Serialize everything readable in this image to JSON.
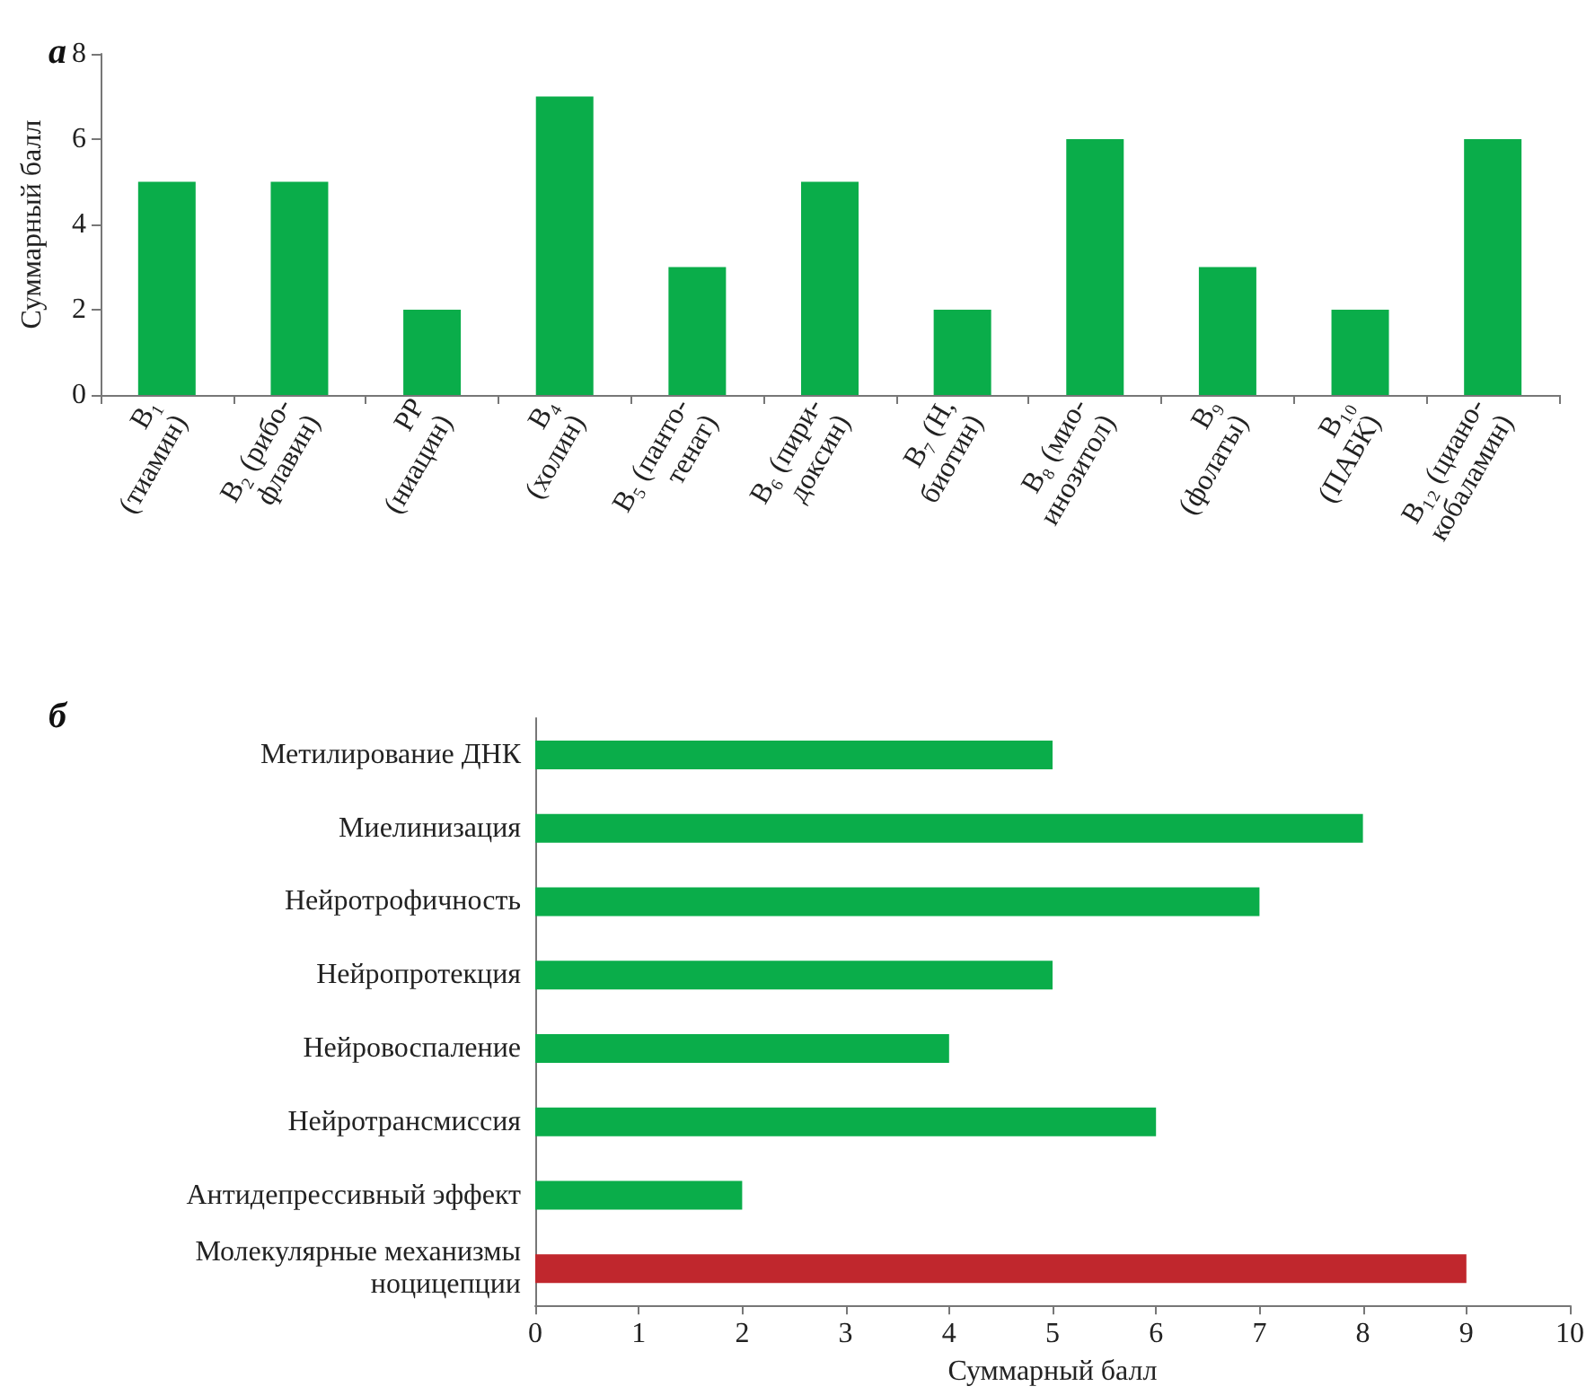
{
  "chart_data": [
    {
      "type": "bar",
      "title": "а",
      "ylabel": "Суммарный балл",
      "categories": [
        "B₁\n(тиамин)",
        "B₂ (рибо-\nфлавин)",
        "PP\n(ниацин)",
        "B₄\n(холин)",
        "B₅ (панто-\nтенат)",
        "B₆ (пири-\nдоксин)",
        "B₇ (H,\nбиотин)",
        "B₈ (мио-\nинозитол)",
        "B₉\n(фолаты)",
        "B₁₀\n(ПАБК)",
        "B₁₂ (циано-\nкобаламин)"
      ],
      "values": [
        5,
        5,
        2,
        7,
        3,
        5,
        2,
        6,
        3,
        2,
        6
      ],
      "color": "#0aad4a",
      "ylim": [
        0,
        8
      ],
      "yticks": [
        0,
        2,
        4,
        6,
        8
      ],
      "grid": false
    },
    {
      "type": "bar",
      "orientation": "horizontal",
      "title": "б",
      "xlabel": "Суммарный балл",
      "categories": [
        "Метилирование ДНК",
        "Миелинизация",
        "Нейротрофичность",
        "Нейропротекция",
        "Нейровоспаление",
        "Нейротрансмиссия",
        "Антидепрессивный эффект",
        "Молекулярные механизмы\nноцицепции"
      ],
      "values": [
        5,
        8,
        7,
        5,
        4,
        6,
        2,
        9
      ],
      "colors": [
        "#0aad4a",
        "#0aad4a",
        "#0aad4a",
        "#0aad4a",
        "#0aad4a",
        "#0aad4a",
        "#0aad4a",
        "#c0272d"
      ],
      "xlim": [
        0,
        10
      ],
      "xticks": [
        0,
        1,
        2,
        3,
        4,
        5,
        6,
        7,
        8,
        9,
        10
      ],
      "grid": false
    }
  ]
}
